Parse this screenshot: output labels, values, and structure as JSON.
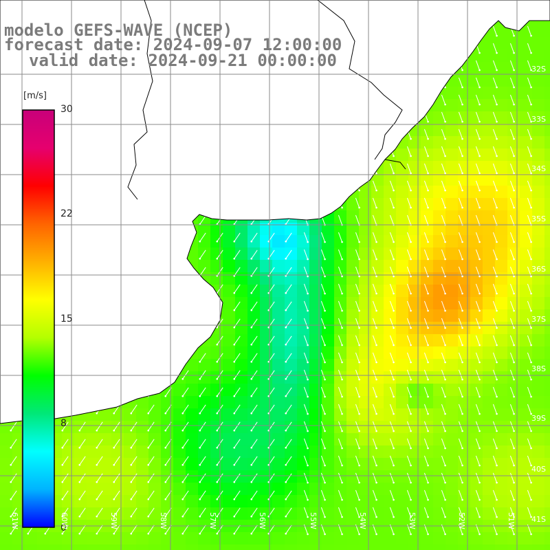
{
  "title": {
    "line1": "modelo GEFS-WAVE (NCEP)",
    "line2": "forecast date: 2024-09-07 12:00:00",
    "line3": "valid date: 2024-09-21 00:00:00"
  },
  "colorbar": {
    "unit": "[m/s]",
    "ticks": [
      "30",
      "22",
      "15",
      "8",
      "0"
    ],
    "range": [
      0,
      30
    ],
    "colors": [
      "#0000ff",
      "#00b4ff",
      "#00ffff",
      "#00e878",
      "#00ff00",
      "#b4ff00",
      "#ffff00",
      "#ffb000",
      "#ff6400",
      "#ff0000",
      "#e6006e",
      "#c8007a"
    ]
  },
  "map": {
    "lat_labels": [
      "32S",
      "33S",
      "34S",
      "35S",
      "36S",
      "37S",
      "38S",
      "39S",
      "40S",
      "41S"
    ],
    "lon_labels": [
      "61W",
      "60W",
      "59W",
      "58W",
      "57W",
      "56W",
      "55W",
      "54W",
      "53W",
      "52W",
      "51W"
    ],
    "colors": {
      "land": "#ffffff",
      "coast": "#000000",
      "grid": "#8a8a8a",
      "arrow": "#ffffff"
    }
  }
}
